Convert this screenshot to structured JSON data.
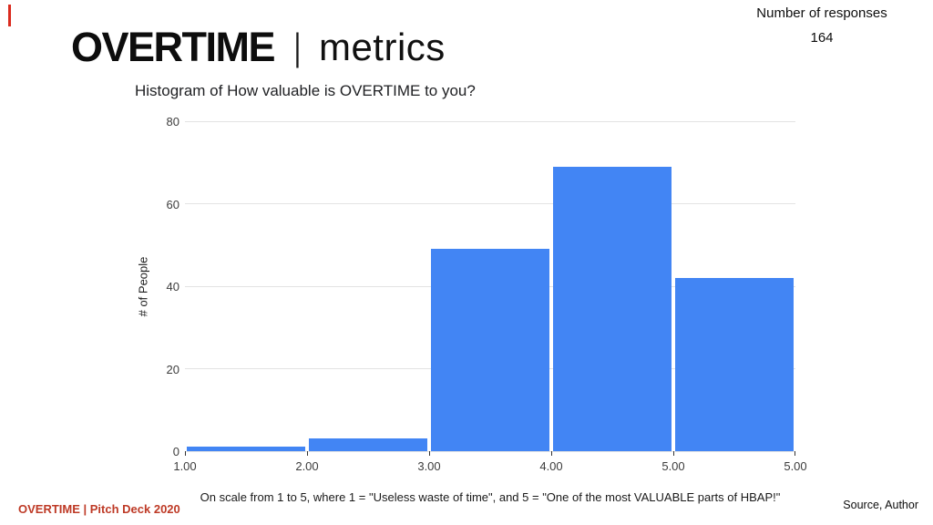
{
  "header": {
    "title_main": "OVERTIME",
    "title_separator": "|",
    "title_sub": "metrics",
    "responses_label": "Number of responses",
    "responses_value": "164"
  },
  "footer": {
    "left": "OVERTIME |  Pitch Deck 2020",
    "left_color": "#BE3A26",
    "right": "Source, Author"
  },
  "accent_color": "#DA2B1F",
  "chart_data": {
    "type": "bar",
    "title": "Histogram of How valuable is OVERTIME to you?",
    "categories": [
      "1.00-2.00",
      "2.00-3.00",
      "3.00-4.00",
      "4.00-5.00",
      "5.00+"
    ],
    "values": [
      1,
      3,
      49,
      69,
      42
    ],
    "x_tick_labels": [
      "1.00",
      "2.00",
      "3.00",
      "4.00",
      "5.00",
      "5.00"
    ],
    "y_ticks": [
      0,
      20,
      40,
      60,
      80
    ],
    "ylim": [
      0,
      80
    ],
    "xlabel": "On scale from 1 to 5, where 1 = \"Useless waste of time\", and 5 = \"One of the most VALUABLE parts of HBAP!\"",
    "ylabel": "# of People",
    "legend": "none",
    "grid": true,
    "bar_color": "#4285F4",
    "grid_color": "#E3E3E3"
  }
}
